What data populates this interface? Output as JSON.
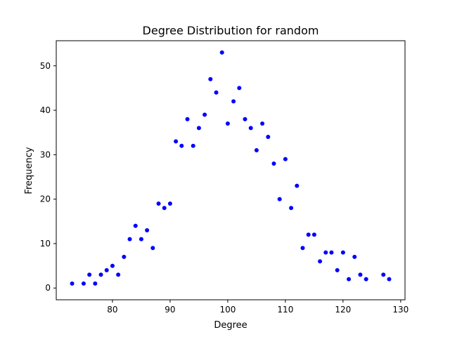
{
  "chart_data": {
    "type": "scatter",
    "title": "Degree Distribution for random",
    "xlabel": "Degree",
    "ylabel": "Frequency",
    "xlim": [
      70.25,
      130.75
    ],
    "ylim": [
      -2.65,
      55.65
    ],
    "xticks": [
      80,
      90,
      100,
      110,
      120,
      130
    ],
    "yticks": [
      0,
      10,
      20,
      30,
      40,
      50
    ],
    "grid": false,
    "marker_color": "#0000ff",
    "series": [
      {
        "x": [
          73,
          75,
          76,
          77,
          78,
          79,
          80,
          81,
          82,
          83,
          84,
          85,
          86,
          87,
          88,
          89,
          90,
          91,
          92,
          93,
          94,
          95,
          96,
          97,
          98,
          99,
          100,
          101,
          102,
          103,
          104,
          105,
          106,
          107,
          108,
          109,
          110,
          111,
          112,
          113,
          114,
          115,
          116,
          117,
          118,
          119,
          120,
          121,
          122,
          123,
          124,
          127,
          128
        ],
        "y": [
          1,
          1,
          3,
          1,
          3,
          4,
          5,
          3,
          7,
          11,
          14,
          11,
          13,
          9,
          19,
          18,
          19,
          33,
          32,
          38,
          32,
          36,
          39,
          47,
          44,
          53,
          37,
          42,
          45,
          38,
          36,
          31,
          37,
          34,
          28,
          20,
          29,
          18,
          23,
          9,
          12,
          12,
          6,
          8,
          8,
          4,
          8,
          2,
          7,
          3,
          2,
          3,
          2
        ]
      }
    ]
  }
}
